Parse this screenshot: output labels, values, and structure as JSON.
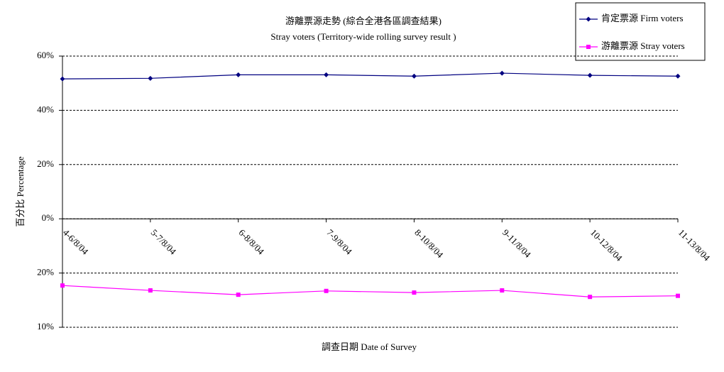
{
  "chart_data": {
    "type": "line",
    "title": "游離票源走勢 (綜合全港各區調查結果)",
    "subtitle": "Stray voters (Territory-wide rolling survey result )",
    "x_label": "調查日期 Date of Survey",
    "y_label": "百分比 Percentage",
    "categories": [
      "4-6/8/04",
      "5-7/8/04",
      "6-8/8/04",
      "7-9/8/04",
      "8-10/8/04",
      "9-11/8/04",
      "10-12/8/04",
      "11-13/8/04"
    ],
    "series": [
      {
        "name": "肯定票源 Firm voters",
        "color": "#000080",
        "marker": "diamond",
        "values": [
          51.6,
          51.8,
          53.1,
          53.1,
          52.6,
          53.7,
          52.9,
          52.6
        ]
      },
      {
        "name": "游離票源 Stray voters",
        "color": "#ff00ff",
        "marker": "square",
        "axis": "y2",
        "values": [
          17.7,
          16.8,
          16.0,
          16.7,
          16.4,
          16.8,
          15.6,
          15.8
        ]
      }
    ],
    "ylim": [
      -40,
      60
    ],
    "yticks": [
      {
        "value": 0,
        "label": "0%"
      },
      {
        "value": 20,
        "label": "20%"
      },
      {
        "value": 40,
        "label": "40%"
      },
      {
        "value": 60,
        "label": "60%"
      }
    ],
    "y2lim": [
      10,
      60
    ],
    "y2ticks": [
      {
        "value": 10,
        "label": "10%"
      },
      {
        "value": 20,
        "label": "20%"
      }
    ],
    "grid": true,
    "legend": "top-right"
  }
}
